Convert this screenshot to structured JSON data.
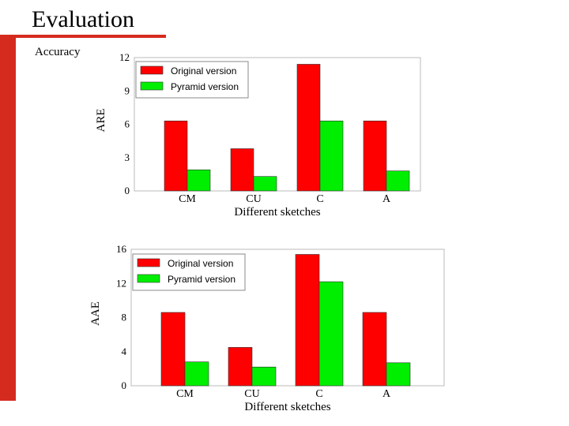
{
  "slide": {
    "title": "Evaluation",
    "subtitle": "Accuracy"
  },
  "colors": {
    "accent": "#d52b1e",
    "original": "#ff0000",
    "pyramid": "#00ee00"
  },
  "chart_data": [
    {
      "type": "bar",
      "categories": [
        "CM",
        "CU",
        "C",
        "A"
      ],
      "series": [
        {
          "name": "Original version",
          "values": [
            6.3,
            3.8,
            11.4,
            6.3
          ]
        },
        {
          "name": "Pyramid version",
          "values": [
            1.9,
            1.3,
            6.3,
            1.8
          ]
        }
      ],
      "yticks": [
        0,
        3,
        6,
        9,
        12
      ],
      "ylim": [
        0,
        12
      ],
      "xlabel": "Different sketches",
      "ylabel": "ARE",
      "legend": "top-left"
    },
    {
      "type": "bar",
      "categories": [
        "CM",
        "CU",
        "C",
        "A"
      ],
      "series": [
        {
          "name": "Original version",
          "values": [
            8.6,
            4.5,
            15.4,
            8.6
          ]
        },
        {
          "name": "Pyramid version",
          "values": [
            2.8,
            2.2,
            12.2,
            2.7
          ]
        }
      ],
      "yticks": [
        0,
        4,
        8,
        12,
        16
      ],
      "ylim": [
        0,
        16
      ],
      "xlabel": "Different sketches",
      "ylabel": "AAE",
      "legend": "top-left"
    }
  ]
}
